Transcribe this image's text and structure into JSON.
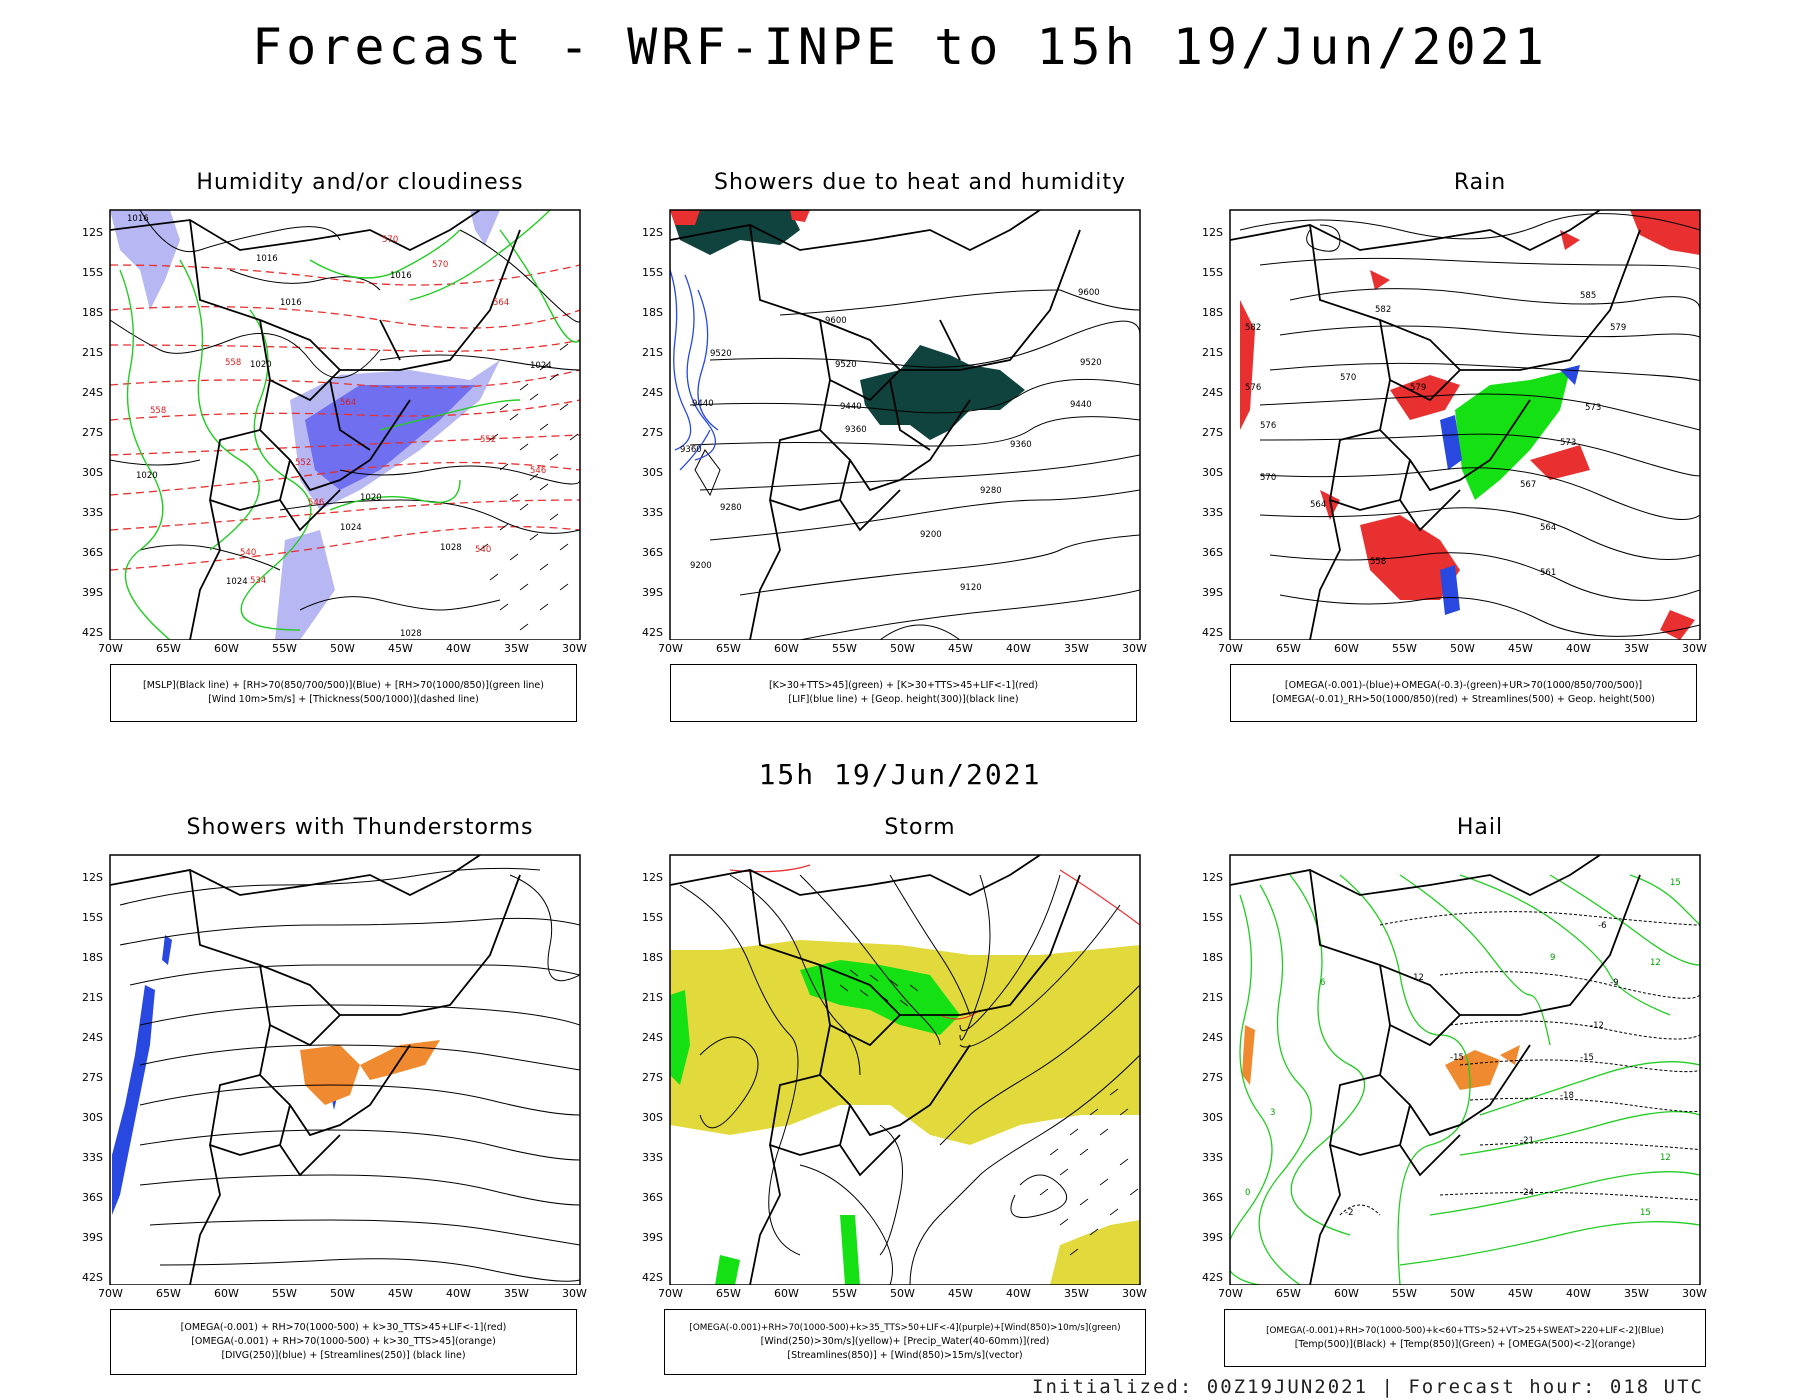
{
  "title": "Forecast - WRF-INPE to 15h 19/Jun/2021",
  "middle_title": "15h 19/Jun/2021",
  "footer": "Initialized: 00Z19JUN2021 | Forecast hour: 018 UTC",
  "axes": {
    "lat_labels": [
      "12S",
      "15S",
      "18S",
      "21S",
      "24S",
      "27S",
      "30S",
      "33S",
      "36S",
      "39S",
      "42S"
    ],
    "lon_labels": [
      "70W",
      "65W",
      "60W",
      "55W",
      "50W",
      "45W",
      "40W",
      "35W",
      "30W"
    ]
  },
  "panels": [
    {
      "title": "Humidity and/or cloudiness",
      "legend": [
        "[MSLP](Black line) + [RH>70(850/700/500)](Blue) + [RH>70(1000/850)](green line)",
        "[Wind 10m>5m/s] + [Thickness(500/1000)](dashed line)"
      ],
      "contour_labels_black": [
        "1016",
        "1016",
        "1016",
        "1020",
        "1020",
        "1024",
        "1024",
        "1028",
        "1028",
        "1020",
        "1024",
        "1016"
      ],
      "contour_labels_red": [
        "570",
        "564",
        "558",
        "552",
        "546",
        "540",
        "534",
        "540",
        "546",
        "552",
        "558",
        "564",
        "570"
      ]
    },
    {
      "title": "Showers due to heat and humidity",
      "legend": [
        "[K>30+TTS>45](green) + [K>30+TTS>45+LIF<-1](red)",
        "[LIF](blue line) + [Geop. height(300)](black line)"
      ],
      "contour_labels_black": [
        "9600",
        "9600",
        "9520",
        "9520",
        "9520",
        "9440",
        "9440",
        "9440",
        "9360",
        "9360",
        "9360",
        "9280",
        "9280",
        "9200",
        "9200",
        "9120"
      ]
    },
    {
      "title": "Rain",
      "legend": [
        "[OMEGA(-0.001)-(blue)+OMEGA(-0.3)-(green)+UR>70(1000/850/700/500)]",
        "[OMEGA(-0.01)_RH>50(1000/850)(red) + Streamlines(500) + Geop. height(500)"
      ],
      "contour_labels_black": [
        "585",
        "582",
        "579",
        "576",
        "573",
        "570",
        "567",
        "564",
        "561",
        "558",
        "564",
        "570",
        "576",
        "582",
        "573",
        "579"
      ]
    },
    {
      "title": "Showers with Thunderstorms",
      "legend": [
        "[OMEGA(-0.001) + RH>70(1000-500) + k>30_TTS>45+LIF<-1](red)",
        "[OMEGA(-0.001) + RH>70(1000-500) + k>30_TTS>45](orange)",
        "[DIVG(250)](blue) + [Streamlines(250)] (black line)"
      ]
    },
    {
      "title": "Storm",
      "legend": [
        "[OMEGA(-0.001)+RH>70(1000-500)+k>35_TTS>50+LIF<-4](purple)+[Wind(850)>10m/s](green)",
        "[Wind(250)>30m/s](yellow)+ [Precip_Water(40-60mm)](red)",
        "[Streamlines(850)] + [Wind(850)>15m/s](vector)"
      ]
    },
    {
      "title": "Hail",
      "legend": [
        "[OMEGA(-0.001)+RH>70(1000-500)+k<60+TTS>52+VT>25+SWEAT>220+LIF<-2](Blue)",
        "[Temp(500)](Black) + [Temp(850)](Green) + [OMEGA(500)<-2](orange)"
      ],
      "contour_labels_black": [
        "-6",
        "-9",
        "-12",
        "-15",
        "-18",
        "-21",
        "-24",
        "-2",
        "-12",
        "-15"
      ],
      "contour_labels_green": [
        "15",
        "12",
        "9",
        "6",
        "3",
        "0",
        "15",
        "12"
      ]
    }
  ],
  "colors": {
    "blue_fill": "#6f6ff0",
    "light_blue_fill": "#b7b7f4",
    "green_line": "#22cc22",
    "red": "#e83030",
    "dark_teal": "#10423e",
    "orange": "#f08a30",
    "yellow": "#e2da3c",
    "bright_green": "#14e014"
  }
}
